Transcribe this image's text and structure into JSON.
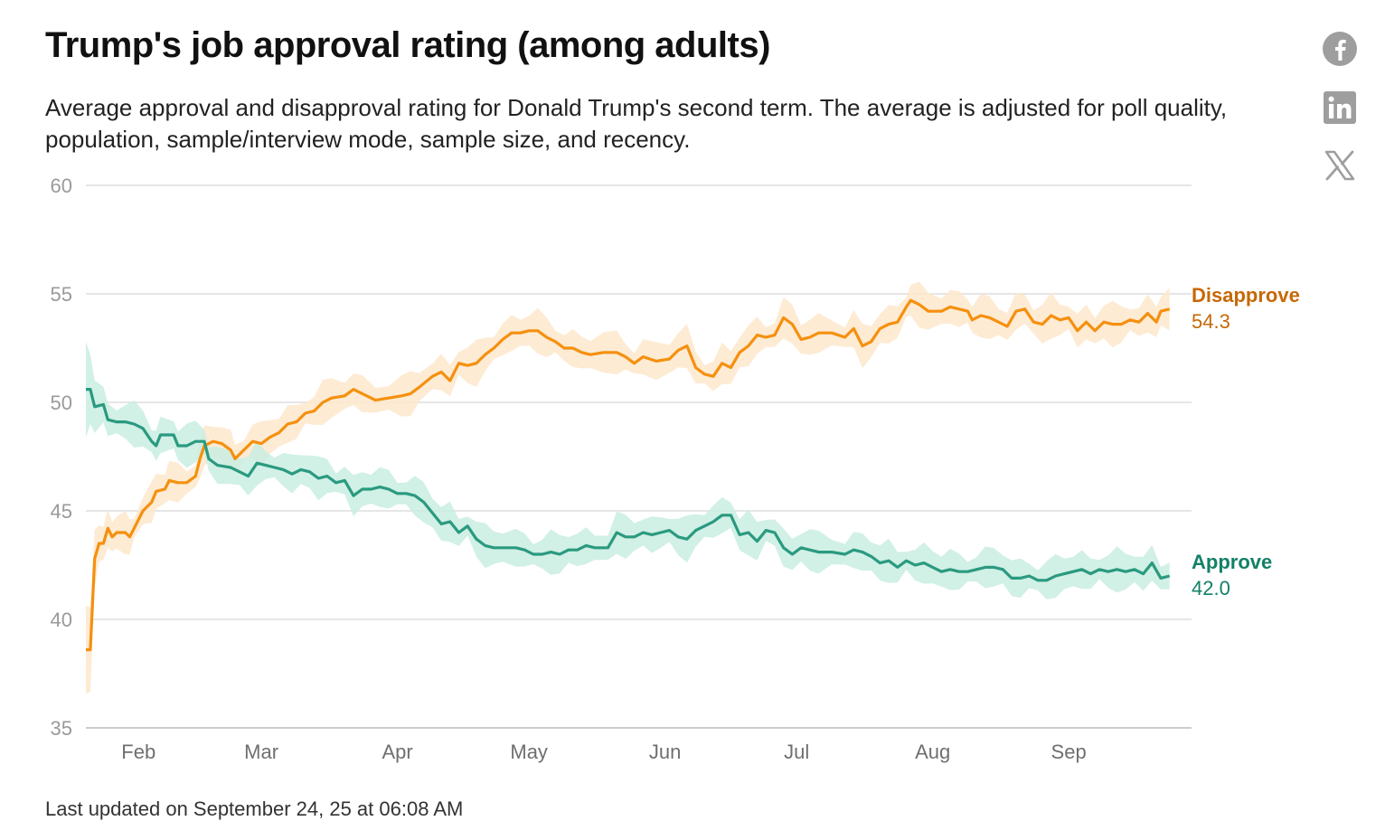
{
  "title": "Trump's job approval rating (among adults)",
  "subtitle": "Average approval and disapproval rating for Donald Trump's second term. The average is adjusted for poll quality, population, sample/interview mode, sample size, and recency.",
  "footnote": "Last updated on September 24, 25 at 06:08 AM",
  "share": [
    {
      "name": "facebook",
      "icon": "facebook-icon"
    },
    {
      "name": "linkedin",
      "icon": "linkedin-icon"
    },
    {
      "name": "x",
      "icon": "x-icon"
    }
  ],
  "colors": {
    "disapprove_line": "#F5900E",
    "disapprove_band": "#FDE8CC",
    "disapprove_label": "#C76806",
    "approve_line": "#2A9A7F",
    "approve_band": "#C9EDE2",
    "approve_label": "#138068",
    "grid": "#DDDDDD",
    "axis": "#BBBBBB"
  },
  "chart_data": {
    "type": "line",
    "ylim": [
      35,
      60
    ],
    "yticks": [
      "35",
      "40",
      "45",
      "50",
      "55",
      "60"
    ],
    "xtick_labels": [
      "Feb",
      "Mar",
      "Apr",
      "May",
      "Jun",
      "Jul",
      "Aug",
      "Sep"
    ],
    "xtick_dates": [
      "2025-02-01",
      "2025-03-01",
      "2025-04-01",
      "2025-05-01",
      "2025-06-01",
      "2025-07-01",
      "2025-08-01",
      "2025-09-01"
    ],
    "xlim": [
      "2025-01-20",
      "2025-09-29"
    ],
    "grid": true,
    "series": [
      {
        "name": "Disapprove",
        "end_label": "54.3",
        "points": [
          [
            "2025-01-20",
            38.6
          ],
          [
            "2025-01-21",
            38.6
          ],
          [
            "2025-01-22",
            42.8
          ],
          [
            "2025-01-23",
            43.5
          ],
          [
            "2025-01-24",
            43.5
          ],
          [
            "2025-01-25",
            44.2
          ],
          [
            "2025-01-26",
            43.8
          ],
          [
            "2025-01-27",
            44.0
          ],
          [
            "2025-01-29",
            44.0
          ],
          [
            "2025-01-30",
            43.8
          ],
          [
            "2025-01-31",
            44.2
          ],
          [
            "2025-02-02",
            45.0
          ],
          [
            "2025-02-04",
            45.4
          ],
          [
            "2025-02-05",
            45.9
          ],
          [
            "2025-02-07",
            46.0
          ],
          [
            "2025-02-08",
            46.4
          ],
          [
            "2025-02-10",
            46.3
          ],
          [
            "2025-02-12",
            46.3
          ],
          [
            "2025-02-14",
            46.6
          ],
          [
            "2025-02-15",
            47.4
          ],
          [
            "2025-02-16",
            48.0
          ],
          [
            "2025-02-18",
            48.2
          ],
          [
            "2025-02-20",
            48.1
          ],
          [
            "2025-02-22",
            47.8
          ],
          [
            "2025-02-23",
            47.4
          ],
          [
            "2025-02-25",
            47.8
          ],
          [
            "2025-02-27",
            48.2
          ],
          [
            "2025-03-01",
            48.1
          ],
          [
            "2025-03-03",
            48.4
          ],
          [
            "2025-03-05",
            48.6
          ],
          [
            "2025-03-07",
            49.0
          ],
          [
            "2025-03-09",
            49.1
          ],
          [
            "2025-03-11",
            49.5
          ],
          [
            "2025-03-13",
            49.6
          ],
          [
            "2025-03-15",
            50.0
          ],
          [
            "2025-03-17",
            50.2
          ],
          [
            "2025-03-20",
            50.3
          ],
          [
            "2025-03-22",
            50.6
          ],
          [
            "2025-03-24",
            50.4
          ],
          [
            "2025-03-27",
            50.1
          ],
          [
            "2025-03-30",
            50.2
          ],
          [
            "2025-04-02",
            50.3
          ],
          [
            "2025-04-04",
            50.4
          ],
          [
            "2025-04-06",
            50.7
          ],
          [
            "2025-04-09",
            51.2
          ],
          [
            "2025-04-11",
            51.4
          ],
          [
            "2025-04-13",
            51.0
          ],
          [
            "2025-04-15",
            51.8
          ],
          [
            "2025-04-17",
            51.7
          ],
          [
            "2025-04-19",
            51.8
          ],
          [
            "2025-04-21",
            52.2
          ],
          [
            "2025-04-23",
            52.5
          ],
          [
            "2025-04-25",
            52.9
          ],
          [
            "2025-04-27",
            53.2
          ],
          [
            "2025-04-29",
            53.2
          ],
          [
            "2025-05-01",
            53.3
          ],
          [
            "2025-05-03",
            53.3
          ],
          [
            "2025-05-05",
            53.0
          ],
          [
            "2025-05-07",
            52.8
          ],
          [
            "2025-05-09",
            52.5
          ],
          [
            "2025-05-11",
            52.5
          ],
          [
            "2025-05-13",
            52.3
          ],
          [
            "2025-05-15",
            52.2
          ],
          [
            "2025-05-18",
            52.3
          ],
          [
            "2025-05-21",
            52.3
          ],
          [
            "2025-05-23",
            52.1
          ],
          [
            "2025-05-25",
            51.8
          ],
          [
            "2025-05-27",
            52.1
          ],
          [
            "2025-05-30",
            51.9
          ],
          [
            "2025-06-02",
            52.0
          ],
          [
            "2025-06-04",
            52.4
          ],
          [
            "2025-06-06",
            52.6
          ],
          [
            "2025-06-08",
            51.6
          ],
          [
            "2025-06-10",
            51.3
          ],
          [
            "2025-06-12",
            51.2
          ],
          [
            "2025-06-14",
            51.8
          ],
          [
            "2025-06-16",
            51.6
          ],
          [
            "2025-06-18",
            52.3
          ],
          [
            "2025-06-20",
            52.6
          ],
          [
            "2025-06-22",
            53.1
          ],
          [
            "2025-06-24",
            53.0
          ],
          [
            "2025-06-26",
            53.1
          ],
          [
            "2025-06-28",
            53.9
          ],
          [
            "2025-06-30",
            53.6
          ],
          [
            "2025-07-02",
            52.9
          ],
          [
            "2025-07-04",
            53.0
          ],
          [
            "2025-07-06",
            53.2
          ],
          [
            "2025-07-09",
            53.2
          ],
          [
            "2025-07-12",
            53.0
          ],
          [
            "2025-07-14",
            53.4
          ],
          [
            "2025-07-16",
            52.6
          ],
          [
            "2025-07-18",
            52.8
          ],
          [
            "2025-07-20",
            53.4
          ],
          [
            "2025-07-22",
            53.6
          ],
          [
            "2025-07-24",
            53.7
          ],
          [
            "2025-07-26",
            54.4
          ],
          [
            "2025-07-27",
            54.7
          ],
          [
            "2025-07-29",
            54.5
          ],
          [
            "2025-07-31",
            54.2
          ],
          [
            "2025-08-03",
            54.2
          ],
          [
            "2025-08-05",
            54.4
          ],
          [
            "2025-08-07",
            54.3
          ],
          [
            "2025-08-09",
            54.2
          ],
          [
            "2025-08-10",
            53.8
          ],
          [
            "2025-08-12",
            54.0
          ],
          [
            "2025-08-14",
            53.9
          ],
          [
            "2025-08-16",
            53.7
          ],
          [
            "2025-08-18",
            53.5
          ],
          [
            "2025-08-20",
            54.2
          ],
          [
            "2025-08-22",
            54.3
          ],
          [
            "2025-08-24",
            53.7
          ],
          [
            "2025-08-26",
            53.6
          ],
          [
            "2025-08-28",
            54.0
          ],
          [
            "2025-08-30",
            53.8
          ],
          [
            "2025-09-01",
            53.9
          ],
          [
            "2025-09-03",
            53.3
          ],
          [
            "2025-09-05",
            53.7
          ],
          [
            "2025-09-07",
            53.3
          ],
          [
            "2025-09-09",
            53.7
          ],
          [
            "2025-09-11",
            53.6
          ],
          [
            "2025-09-13",
            53.6
          ],
          [
            "2025-09-15",
            53.8
          ],
          [
            "2025-09-17",
            53.7
          ],
          [
            "2025-09-19",
            54.1
          ],
          [
            "2025-09-21",
            53.7
          ],
          [
            "2025-09-22",
            54.2
          ],
          [
            "2025-09-24",
            54.3
          ]
        ]
      },
      {
        "name": "Approve",
        "end_label": "42.0",
        "points": [
          [
            "2025-01-20",
            50.6
          ],
          [
            "2025-01-21",
            50.6
          ],
          [
            "2025-01-22",
            49.8
          ],
          [
            "2025-01-24",
            49.9
          ],
          [
            "2025-01-25",
            49.2
          ],
          [
            "2025-01-27",
            49.1
          ],
          [
            "2025-01-29",
            49.1
          ],
          [
            "2025-01-31",
            49.0
          ],
          [
            "2025-02-02",
            48.8
          ],
          [
            "2025-02-04",
            48.2
          ],
          [
            "2025-02-05",
            48.0
          ],
          [
            "2025-02-06",
            48.5
          ],
          [
            "2025-02-09",
            48.5
          ],
          [
            "2025-02-10",
            48.0
          ],
          [
            "2025-02-12",
            48.0
          ],
          [
            "2025-02-14",
            48.2
          ],
          [
            "2025-02-16",
            48.2
          ],
          [
            "2025-02-17",
            47.4
          ],
          [
            "2025-02-19",
            47.1
          ],
          [
            "2025-02-22",
            47.0
          ],
          [
            "2025-02-24",
            46.8
          ],
          [
            "2025-02-26",
            46.6
          ],
          [
            "2025-02-28",
            47.2
          ],
          [
            "2025-03-02",
            47.1
          ],
          [
            "2025-03-04",
            47.0
          ],
          [
            "2025-03-06",
            46.9
          ],
          [
            "2025-03-08",
            46.7
          ],
          [
            "2025-03-10",
            46.9
          ],
          [
            "2025-03-12",
            46.8
          ],
          [
            "2025-03-14",
            46.5
          ],
          [
            "2025-03-16",
            46.6
          ],
          [
            "2025-03-18",
            46.3
          ],
          [
            "2025-03-20",
            46.4
          ],
          [
            "2025-03-22",
            45.7
          ],
          [
            "2025-03-24",
            46.0
          ],
          [
            "2025-03-26",
            46.0
          ],
          [
            "2025-03-28",
            46.1
          ],
          [
            "2025-03-30",
            46.0
          ],
          [
            "2025-04-01",
            45.8
          ],
          [
            "2025-04-03",
            45.8
          ],
          [
            "2025-04-05",
            45.7
          ],
          [
            "2025-04-07",
            45.4
          ],
          [
            "2025-04-09",
            44.9
          ],
          [
            "2025-04-11",
            44.4
          ],
          [
            "2025-04-13",
            44.5
          ],
          [
            "2025-04-15",
            44.0
          ],
          [
            "2025-04-17",
            44.3
          ],
          [
            "2025-04-19",
            43.7
          ],
          [
            "2025-04-21",
            43.4
          ],
          [
            "2025-04-23",
            43.3
          ],
          [
            "2025-04-25",
            43.3
          ],
          [
            "2025-04-28",
            43.3
          ],
          [
            "2025-04-30",
            43.2
          ],
          [
            "2025-05-02",
            43.0
          ],
          [
            "2025-05-04",
            43.0
          ],
          [
            "2025-05-06",
            43.1
          ],
          [
            "2025-05-08",
            43.0
          ],
          [
            "2025-05-10",
            43.2
          ],
          [
            "2025-05-12",
            43.2
          ],
          [
            "2025-05-14",
            43.4
          ],
          [
            "2025-05-16",
            43.3
          ],
          [
            "2025-05-19",
            43.3
          ],
          [
            "2025-05-21",
            44.0
          ],
          [
            "2025-05-23",
            43.8
          ],
          [
            "2025-05-25",
            43.8
          ],
          [
            "2025-05-27",
            44.0
          ],
          [
            "2025-05-29",
            43.9
          ],
          [
            "2025-05-31",
            44.0
          ],
          [
            "2025-06-02",
            44.1
          ],
          [
            "2025-06-04",
            43.8
          ],
          [
            "2025-06-06",
            43.7
          ],
          [
            "2025-06-08",
            44.1
          ],
          [
            "2025-06-10",
            44.3
          ],
          [
            "2025-06-12",
            44.5
          ],
          [
            "2025-06-14",
            44.8
          ],
          [
            "2025-06-16",
            44.8
          ],
          [
            "2025-06-18",
            43.9
          ],
          [
            "2025-06-20",
            44.0
          ],
          [
            "2025-06-22",
            43.6
          ],
          [
            "2025-06-24",
            44.1
          ],
          [
            "2025-06-26",
            44.0
          ],
          [
            "2025-06-28",
            43.3
          ],
          [
            "2025-06-30",
            43.0
          ],
          [
            "2025-07-02",
            43.3
          ],
          [
            "2025-07-04",
            43.2
          ],
          [
            "2025-07-06",
            43.1
          ],
          [
            "2025-07-09",
            43.1
          ],
          [
            "2025-07-12",
            43.0
          ],
          [
            "2025-07-14",
            43.2
          ],
          [
            "2025-07-16",
            43.1
          ],
          [
            "2025-07-18",
            42.9
          ],
          [
            "2025-07-20",
            42.6
          ],
          [
            "2025-07-22",
            42.7
          ],
          [
            "2025-07-24",
            42.4
          ],
          [
            "2025-07-26",
            42.7
          ],
          [
            "2025-07-28",
            42.5
          ],
          [
            "2025-07-30",
            42.6
          ],
          [
            "2025-08-01",
            42.4
          ],
          [
            "2025-08-03",
            42.2
          ],
          [
            "2025-08-05",
            42.3
          ],
          [
            "2025-08-07",
            42.2
          ],
          [
            "2025-08-09",
            42.2
          ],
          [
            "2025-08-11",
            42.3
          ],
          [
            "2025-08-13",
            42.4
          ],
          [
            "2025-08-15",
            42.4
          ],
          [
            "2025-08-17",
            42.3
          ],
          [
            "2025-08-19",
            41.9
          ],
          [
            "2025-08-21",
            41.9
          ],
          [
            "2025-08-23",
            42.0
          ],
          [
            "2025-08-25",
            41.8
          ],
          [
            "2025-08-27",
            41.8
          ],
          [
            "2025-08-29",
            42.0
          ],
          [
            "2025-08-31",
            42.1
          ],
          [
            "2025-09-02",
            42.2
          ],
          [
            "2025-09-04",
            42.3
          ],
          [
            "2025-09-06",
            42.1
          ],
          [
            "2025-09-08",
            42.3
          ],
          [
            "2025-09-10",
            42.2
          ],
          [
            "2025-09-12",
            42.3
          ],
          [
            "2025-09-14",
            42.2
          ],
          [
            "2025-09-16",
            42.3
          ],
          [
            "2025-09-18",
            42.1
          ],
          [
            "2025-09-20",
            42.6
          ],
          [
            "2025-09-22",
            41.9
          ],
          [
            "2025-09-24",
            42.0
          ]
        ]
      }
    ]
  }
}
